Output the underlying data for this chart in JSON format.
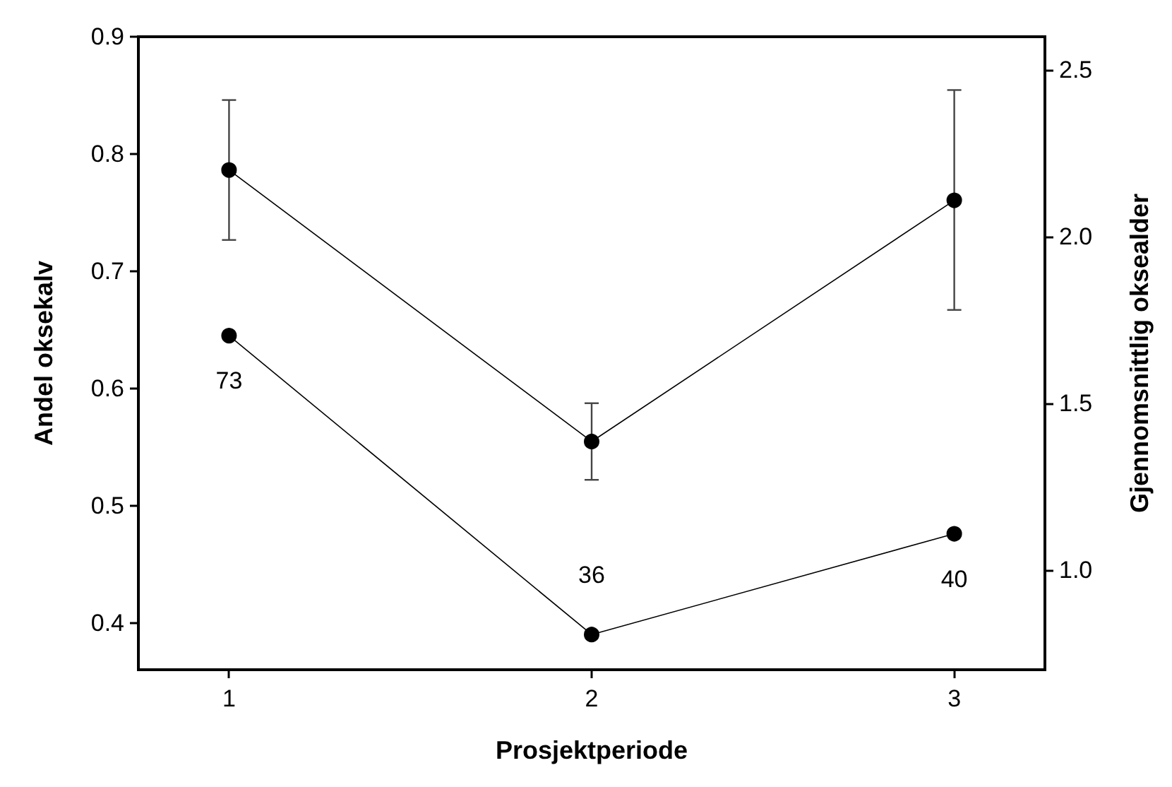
{
  "chart_data": {
    "type": "line",
    "xlabel": "Prosjektperiode",
    "ylabel": "Andel oksekalv",
    "y2label": "Gjennomsnittlig oksealder",
    "x": [
      1,
      2,
      3
    ],
    "xlim": [
      0.75,
      3.25
    ],
    "xticks": [
      1,
      2,
      3
    ],
    "ylim": [
      0.36,
      0.9
    ],
    "yticks": [
      0.4,
      0.5,
      0.6,
      0.7,
      0.8,
      0.9
    ],
    "y2lim": [
      0.7,
      2.6
    ],
    "y2ticks": [
      {
        "value": 1,
        "label": "1.0"
      },
      1.5,
      {
        "value": 2,
        "label": "2.0"
      },
      2.5
    ],
    "series": [
      {
        "color": "#000000",
        "values": [
          0.645,
          0.39,
          0.476
        ]
      },
      {
        "color": "#000000",
        "axis": "y2",
        "values": [
          2.2,
          1.385,
          2.109
        ],
        "errors": [
          [
            1.99,
            2.41
          ],
          [
            1.27,
            1.5
          ],
          [
            1.78,
            2.44
          ]
        ]
      }
    ],
    "annotations": [
      "73",
      "36",
      "40"
    ],
    "marker": "circle",
    "line_style": "solid",
    "grid": false
  }
}
